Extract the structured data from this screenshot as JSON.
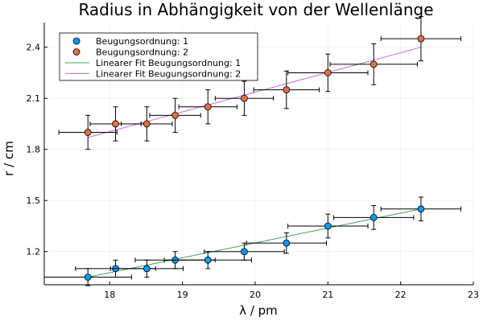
{
  "chart_data": {
    "type": "scatter",
    "title": "Radius in Abhängigkeit von der Wellenlänge",
    "xlabel": "λ / pm",
    "ylabel": "r / cm",
    "xlim": [
      17.1,
      23.0
    ],
    "ylim": [
      1.005,
      2.545
    ],
    "x_ticks": [
      18,
      19,
      20,
      21,
      22,
      23
    ],
    "x_tick_labels": [
      "18",
      "19",
      "20",
      "21",
      "22",
      "23"
    ],
    "y_ticks": [
      1.2,
      1.5,
      1.8,
      2.1,
      2.4
    ],
    "y_tick_labels": [
      "1.2",
      "1.5",
      "1.8",
      "2.1",
      "2.4"
    ],
    "grid": true,
    "legend_position": "top-left",
    "series": [
      {
        "name": "Beugungsordnung: 1",
        "kind": "scatter",
        "color": "#009AFA",
        "x": [
          17.7,
          18.08,
          18.51,
          18.9,
          19.35,
          19.85,
          20.43,
          21.0,
          21.63,
          22.28
        ],
        "y": [
          1.05,
          1.1,
          1.1,
          1.15,
          1.15,
          1.2,
          1.25,
          1.35,
          1.4,
          1.45
        ],
        "xerr": [
          0.6,
          0.55,
          0.5,
          0.55,
          0.6,
          0.55,
          0.55,
          0.55,
          0.55,
          0.55
        ],
        "yerr": [
          0.05,
          0.05,
          0.05,
          0.05,
          0.05,
          0.05,
          0.06,
          0.07,
          0.07,
          0.07
        ]
      },
      {
        "name": "Beugungsordnung: 2",
        "kind": "scatter",
        "color": "#E26F46",
        "x": [
          17.7,
          18.08,
          18.51,
          18.9,
          19.35,
          19.85,
          20.43,
          21.0,
          21.63,
          22.28
        ],
        "y": [
          1.9,
          1.95,
          1.95,
          2.0,
          2.05,
          2.1,
          2.15,
          2.25,
          2.3,
          2.45
        ],
        "xerr": [
          0.4,
          0.35,
          0.35,
          0.35,
          0.4,
          0.4,
          0.45,
          0.55,
          0.6,
          0.55
        ],
        "yerr": [
          0.1,
          0.1,
          0.1,
          0.1,
          0.1,
          0.1,
          0.11,
          0.11,
          0.12,
          0.13
        ]
      },
      {
        "name": "Linearer Fit Beugungsordnung: 1",
        "kind": "line",
        "color": "#3DA44D",
        "x": [
          17.7,
          22.28
        ],
        "y": [
          1.05,
          1.45
        ]
      },
      {
        "name": "Linearer Fit Beugungsordnung: 2",
        "kind": "line",
        "color": "#C271D2",
        "x": [
          17.7,
          22.28
        ],
        "y": [
          1.87,
          2.4
        ]
      }
    ]
  }
}
